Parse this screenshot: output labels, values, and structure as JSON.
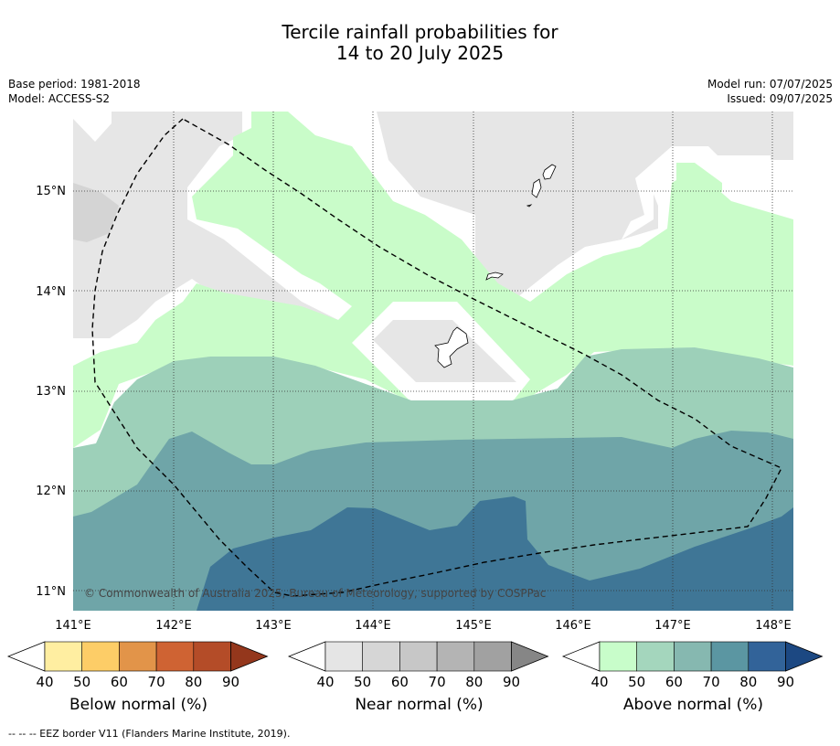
{
  "title": {
    "line1": "Tercile rainfall probabilities for",
    "line2": "14 to 20 July 2025"
  },
  "meta": {
    "base_period": "Base period: 1981-2018",
    "model": "Model: ACCESS-S2",
    "model_run": "Model run: 07/07/2025",
    "issued": "Issued: 09/07/2025"
  },
  "map": {
    "lon_labels": [
      "141°E",
      "142°E",
      "143°E",
      "144°E",
      "145°E",
      "146°E",
      "147°E",
      "148°E"
    ],
    "lat_labels": [
      "15°N",
      "14°N",
      "13°N",
      "12°N",
      "11°N"
    ],
    "copyright": "© Commonwealth of Australia 2025, Bureau of Meteorology, supported by COSPPac",
    "colors": {
      "near_light": "#e6e6e6",
      "near_mid": "#d4d4d4",
      "above_40": "#c9fcc9",
      "above_50": "#9dd0b9",
      "above_60": "#6fa5a8",
      "above_80": "#3f7696"
    }
  },
  "colorbars": [
    {
      "name": "below",
      "label": "Below normal (%)",
      "ticks": [
        "40",
        "50",
        "60",
        "70",
        "80",
        "90"
      ],
      "colors": [
        "#ffeea1",
        "#fdcd67",
        "#e29449",
        "#cf6333",
        "#b44c28",
        "#94371c"
      ]
    },
    {
      "name": "near",
      "label": "Near normal (%)",
      "ticks": [
        "40",
        "50",
        "60",
        "70",
        "80",
        "90"
      ],
      "colors": [
        "#e5e5e5",
        "#d6d6d6",
        "#c7c7c7",
        "#b4b4b4",
        "#a1a1a1",
        "#868686"
      ]
    },
    {
      "name": "above",
      "label": "Above normal (%)",
      "ticks": [
        "40",
        "50",
        "60",
        "70",
        "80",
        "90"
      ],
      "colors": [
        "#c8fdca",
        "#a4d6bd",
        "#86b8b0",
        "#5b96a2",
        "#326399",
        "#1c4882"
      ]
    }
  ],
  "footer": "-- -- -- EEZ border V11 (Flanders Marine Institute, 2019)."
}
